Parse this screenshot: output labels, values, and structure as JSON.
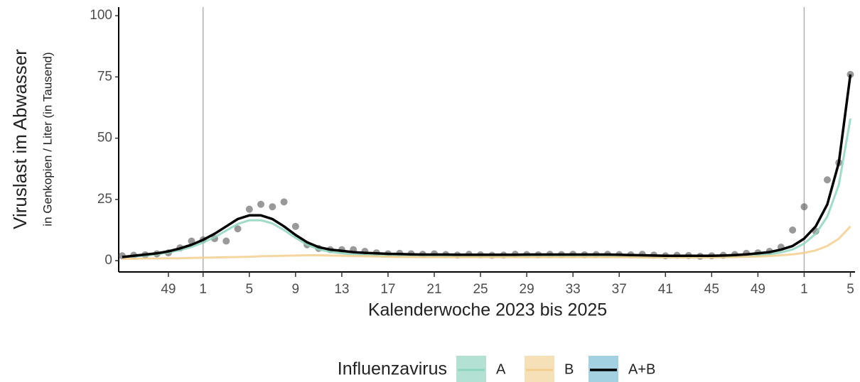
{
  "chart_data": {
    "type": "line",
    "y_title": "Viruslast im Abwasser",
    "y_subtitle": "in Genkopien / Liter (in Tausend)",
    "x_title": "Kalenderwoche 2023 bis 2025",
    "legend_title": "Influenzavirus",
    "legend": "bottom",
    "x": [
      -7,
      -6,
      -5,
      -4,
      -3,
      -2,
      -1,
      0,
      1,
      2,
      3,
      4,
      5,
      6,
      7,
      8,
      9,
      10,
      11,
      12,
      13,
      14,
      15,
      16,
      17,
      18,
      19,
      20,
      21,
      22,
      23,
      24,
      25,
      26,
      27,
      28,
      29,
      30,
      31,
      32,
      33,
      34,
      35,
      36,
      37,
      38,
      39,
      40,
      41,
      42,
      43,
      44,
      45,
      46,
      47,
      48,
      49,
      50,
      51,
      52,
      53,
      54,
      55,
      56
    ],
    "xlim": [
      -7.3,
      56.4
    ],
    "ylim": [
      -4.6,
      103.5
    ],
    "xticks": [
      {
        "value": -3,
        "label": "49"
      },
      {
        "value": 0,
        "label": "1"
      },
      {
        "value": 4,
        "label": "5"
      },
      {
        "value": 8,
        "label": "9"
      },
      {
        "value": 12,
        "label": "13"
      },
      {
        "value": 16,
        "label": "17"
      },
      {
        "value": 20,
        "label": "21"
      },
      {
        "value": 24,
        "label": "25"
      },
      {
        "value": 28,
        "label": "29"
      },
      {
        "value": 32,
        "label": "33"
      },
      {
        "value": 36,
        "label": "37"
      },
      {
        "value": 40,
        "label": "41"
      },
      {
        "value": 44,
        "label": "45"
      },
      {
        "value": 48,
        "label": "49"
      },
      {
        "value": 52,
        "label": "1"
      },
      {
        "value": 56,
        "label": "5"
      }
    ],
    "yticks": [
      0,
      25,
      50,
      75,
      100
    ],
    "vlines": [
      0,
      52
    ],
    "series": [
      {
        "name": "A",
        "color": "#8fd4bf",
        "fill": "#b3e2d5",
        "values": [
          1.3,
          1.7,
          2.1,
          2.6,
          3.3,
          4.3,
          5.6,
          7.4,
          9.6,
          12.3,
          15,
          16.5,
          16.5,
          15.2,
          12.5,
          9.3,
          6.5,
          4.6,
          3.6,
          3,
          2.6,
          2.3,
          2.1,
          1.9,
          1.8,
          1.7,
          1.7,
          1.7,
          1.7,
          1.7,
          1.7,
          1.7,
          1.7,
          1.7,
          1.8,
          1.8,
          1.8,
          1.8,
          1.8,
          1.8,
          1.8,
          1.8,
          1.7,
          1.6,
          1.5,
          1.5,
          1.4,
          1.4,
          1.4,
          1.4,
          1.4,
          1.4,
          1.5,
          1.6,
          1.8,
          2.1,
          2.6,
          3.4,
          4.6,
          7,
          11,
          18,
          31,
          58
        ]
      },
      {
        "name": "B",
        "color": "#f3cf8f",
        "fill": "#f6e0b7",
        "values": [
          0.8,
          0.8,
          0.9,
          0.9,
          1,
          1,
          1.1,
          1.2,
          1.3,
          1.4,
          1.5,
          1.6,
          1.8,
          1.9,
          2,
          2.1,
          2.2,
          2.2,
          2.1,
          2,
          1.9,
          1.8,
          1.7,
          1.6,
          1.5,
          1.5,
          1.4,
          1.4,
          1.4,
          1.4,
          1.4,
          1.4,
          1.4,
          1.4,
          1.4,
          1.4,
          1.4,
          1.4,
          1.4,
          1.4,
          1.4,
          1.4,
          1.4,
          1.4,
          1.4,
          1.3,
          1.3,
          1.3,
          1.3,
          1.3,
          1.3,
          1.3,
          1.4,
          1.5,
          1.6,
          1.7,
          1.9,
          2.2,
          2.6,
          3.2,
          4.2,
          6,
          9,
          14
        ]
      },
      {
        "name": "A+B",
        "color": "#000000",
        "fill": "#a3d1e2",
        "point_color": "#555555",
        "values": [
          1.5,
          2,
          2.5,
          3,
          3.8,
          5,
          6.5,
          8.5,
          11,
          14,
          17,
          18.5,
          18.5,
          17,
          14,
          10.5,
          7.5,
          5.5,
          4.5,
          4,
          3.5,
          3.2,
          3,
          2.8,
          2.7,
          2.6,
          2.5,
          2.5,
          2.5,
          2.4,
          2.4,
          2.4,
          2.4,
          2.4,
          2.4,
          2.5,
          2.5,
          2.5,
          2.5,
          2.5,
          2.5,
          2.5,
          2.5,
          2.4,
          2.3,
          2.2,
          2.1,
          2,
          2,
          2,
          2,
          2,
          2.1,
          2.3,
          2.6,
          3,
          3.5,
          4.5,
          6,
          9,
          14,
          23,
          40,
          76
        ],
        "points": [
          2,
          2.2,
          2.4,
          2.8,
          3.2,
          5.2,
          8,
          8.5,
          9,
          8,
          13,
          21,
          23,
          22,
          24,
          14,
          6.5,
          5,
          4.5,
          4.5,
          4.5,
          3.8,
          3.2,
          2.8,
          3,
          2.8,
          2.6,
          2.8,
          2.5,
          2.3,
          2.6,
          2.4,
          2.2,
          2.3,
          2.6,
          2.5,
          2.4,
          2.6,
          2.5,
          2.6,
          2.4,
          2.5,
          2.6,
          2.5,
          2.4,
          2.6,
          2.3,
          2,
          2.2,
          2.1,
          1.8,
          2,
          2.2,
          2.5,
          3,
          3.2,
          3.8,
          5.5,
          12.5,
          22,
          12,
          33,
          40,
          76
        ]
      }
    ]
  }
}
